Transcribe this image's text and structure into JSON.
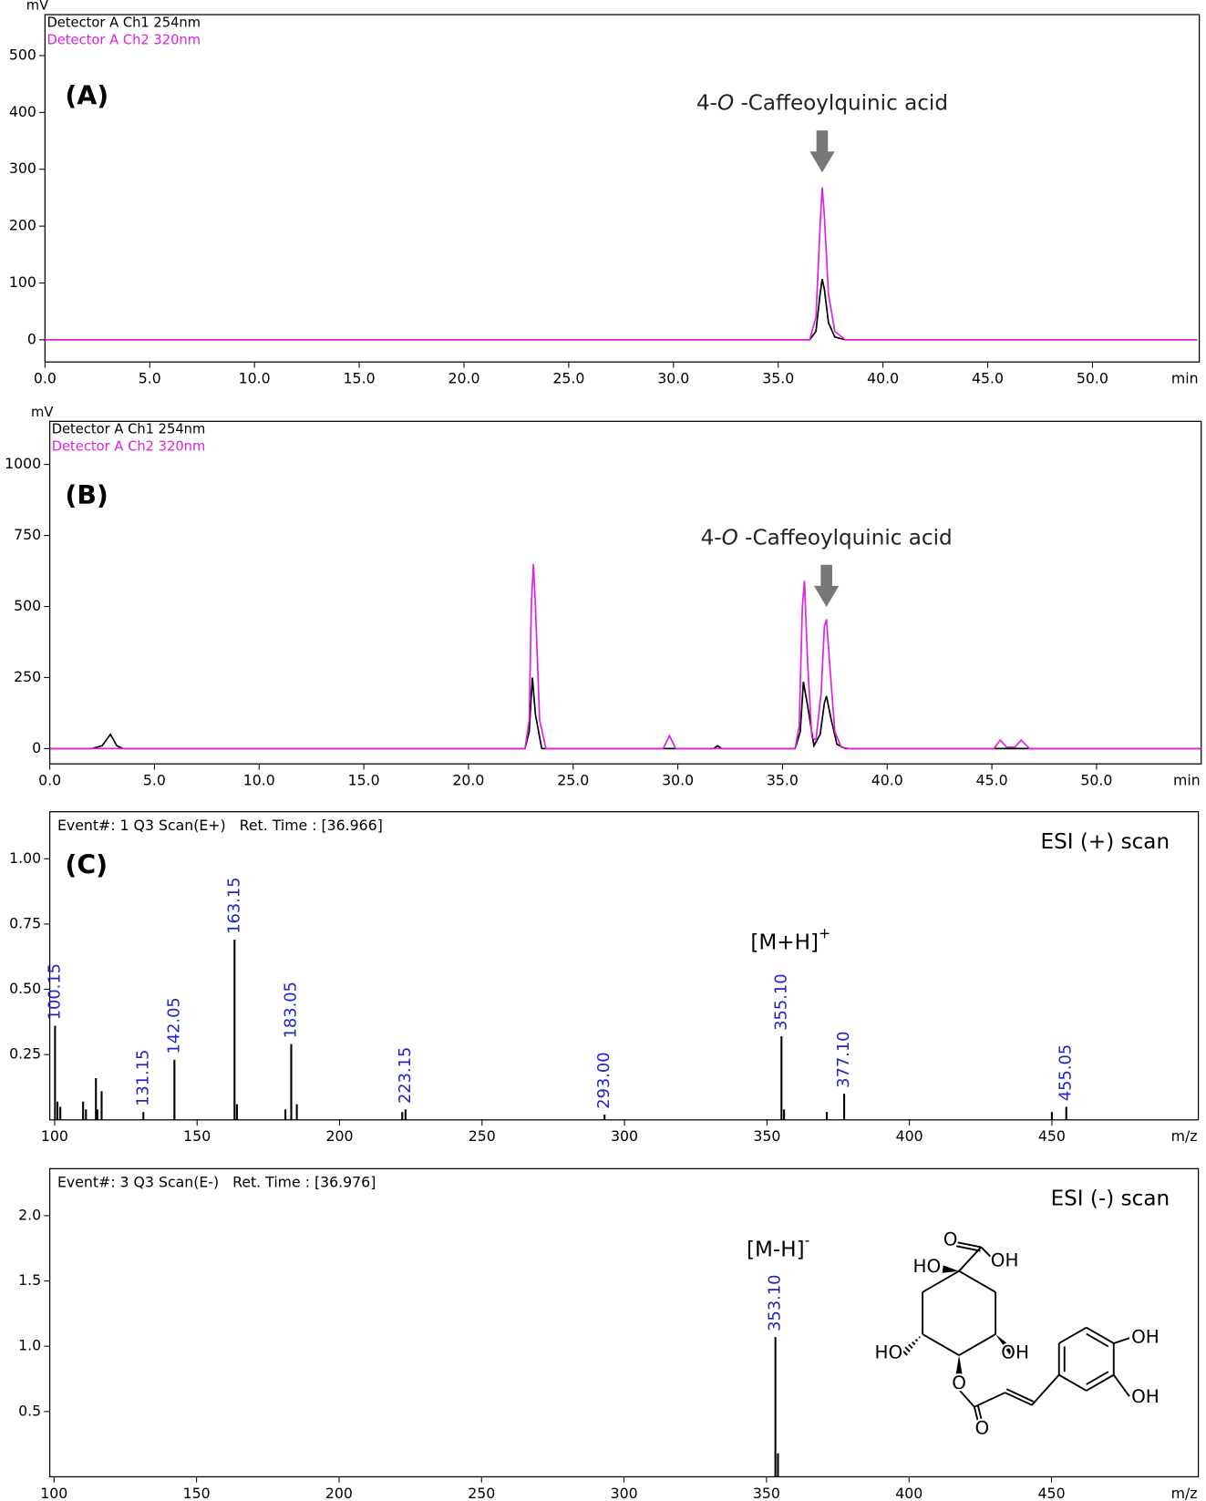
{
  "chart_data": [
    {
      "type": "line",
      "panel_label": "(A)",
      "y_label": "mV",
      "x_label": "min",
      "annotation": {
        "parts": [
          "4-",
          "O",
          " -Caffeoylquinic acid"
        ],
        "x": 37.1
      },
      "xlim": [
        0,
        55.1
      ],
      "ylim": [
        -39,
        572
      ],
      "xticks": [
        {
          "value": 0,
          "label": "0.0"
        },
        {
          "value": 5,
          "label": "5.0"
        },
        {
          "value": 10,
          "label": "10.0"
        },
        {
          "value": 15,
          "label": "15.0"
        },
        {
          "value": 20,
          "label": "20.0"
        },
        {
          "value": 25,
          "label": "25.0"
        },
        {
          "value": 30,
          "label": "30.0"
        },
        {
          "value": 35,
          "label": "35.0"
        },
        {
          "value": 40,
          "label": "40.0"
        },
        {
          "value": 45,
          "label": "45.0"
        },
        {
          "value": 50,
          "label": "50.0"
        }
      ],
      "yticks": [
        0,
        100,
        200,
        300,
        400,
        500
      ],
      "series": [
        {
          "name": "Detector A Ch1 254nm",
          "color": "#000000",
          "x": [
            0,
            36.5,
            36.8,
            37.0,
            37.1,
            37.2,
            37.4,
            37.7,
            38.2,
            55
          ],
          "values": [
            0,
            0,
            15,
            80,
            107,
            90,
            30,
            5,
            0,
            0
          ]
        },
        {
          "name": "Detector A Ch2 320nm",
          "color": "#e020e0",
          "x": [
            0,
            36.5,
            36.8,
            37.0,
            37.1,
            37.2,
            37.4,
            37.7,
            38.2,
            55
          ],
          "values": [
            0,
            0,
            40,
            200,
            268,
            220,
            80,
            15,
            0,
            0
          ]
        }
      ]
    },
    {
      "type": "line",
      "panel_label": "(B)",
      "y_label": "mV",
      "x_label": "min",
      "annotation": {
        "parts": [
          "4-",
          "O",
          " -Caffeoylquinic acid"
        ],
        "x": 37.1
      },
      "xlim": [
        0,
        55
      ],
      "ylim": [
        -54,
        1152
      ],
      "xticks": [
        {
          "value": 0,
          "label": "0.0"
        },
        {
          "value": 5,
          "label": "5.0"
        },
        {
          "value": 10,
          "label": "10.0"
        },
        {
          "value": 15,
          "label": "15.0"
        },
        {
          "value": 20,
          "label": "20.0"
        },
        {
          "value": 25,
          "label": "25.0"
        },
        {
          "value": 30,
          "label": "30.0"
        },
        {
          "value": 35,
          "label": "35.0"
        },
        {
          "value": 40,
          "label": "40.0"
        },
        {
          "value": 45,
          "label": "45.0"
        },
        {
          "value": 50,
          "label": "50.0"
        }
      ],
      "yticks": [
        0,
        250,
        500,
        750,
        1000
      ],
      "series": [
        {
          "name": "Detector A Ch1 254nm",
          "color": "#000000",
          "x": [
            0,
            2.0,
            2.5,
            2.9,
            3.2,
            3.5,
            22.7,
            22.9,
            23.05,
            23.2,
            23.5,
            31.7,
            31.9,
            32.1,
            35.6,
            35.85,
            36.0,
            36.2,
            36.5,
            36.8,
            37.0,
            37.1,
            37.3,
            37.6,
            38.0,
            55
          ],
          "values": [
            0,
            0,
            10,
            50,
            10,
            0,
            0,
            60,
            250,
            120,
            0,
            0,
            10,
            0,
            0,
            60,
            235,
            150,
            10,
            50,
            160,
            185,
            110,
            15,
            0,
            0
          ]
        },
        {
          "name": "Detector A Ch2 320nm",
          "color": "#e020e0",
          "x": [
            0,
            22.7,
            22.9,
            23.0,
            23.1,
            23.2,
            23.4,
            23.7,
            29.3,
            29.6,
            29.9,
            35.6,
            35.8,
            35.95,
            36.05,
            36.2,
            36.4,
            36.6,
            36.85,
            37.0,
            37.1,
            37.25,
            37.5,
            37.8,
            38.2,
            45.1,
            45.4,
            45.7,
            46.1,
            46.4,
            46.8,
            55
          ],
          "values": [
            0,
            0,
            100,
            500,
            650,
            500,
            100,
            0,
            0,
            45,
            0,
            0,
            80,
            500,
            590,
            300,
            40,
            30,
            200,
            430,
            455,
            300,
            60,
            5,
            0,
            0,
            30,
            5,
            5,
            30,
            0,
            0
          ]
        }
      ]
    },
    {
      "type": "spectrum",
      "panel_label": "(C)",
      "x_label": "m/z",
      "event": "Event#: 1 Q3 Scan(E+)   Ret. Time : [36.966]",
      "scan": "ESI (+) scan",
      "ion": [
        "[M+H]",
        "+"
      ],
      "xlim": [
        98.3,
        501.4
      ],
      "ylim": [
        0,
        1.18
      ],
      "xticks": [
        100,
        150,
        200,
        250,
        300,
        350,
        400,
        450
      ],
      "yticks": [
        0.25,
        {
          "value": 0.5,
          "label": "0.50"
        },
        0.75,
        {
          "value": 1,
          "label": "1.00"
        }
      ],
      "color": "#000000",
      "label_color": "#2222cc",
      "x": [
        100.15,
        101,
        102,
        110,
        111,
        114.5,
        115,
        116.5,
        131.15,
        142.05,
        163.15,
        164,
        181,
        183.05,
        185,
        222,
        223.15,
        293.0,
        355.1,
        356,
        371,
        377.1,
        450,
        455.05
      ],
      "x_labels": [
        "100.15",
        null,
        null,
        null,
        null,
        null,
        null,
        null,
        "131.15",
        "142.05",
        "163.15",
        null,
        null,
        "183.05",
        null,
        null,
        "223.15",
        "293.00",
        "355.10",
        null,
        null,
        "377.10",
        null,
        "455.05"
      ],
      "values": [
        0.36,
        0.07,
        0.05,
        0.07,
        0.04,
        0.16,
        0.04,
        0.11,
        0.03,
        0.23,
        0.69,
        0.06,
        0.04,
        0.29,
        0.06,
        0.03,
        0.04,
        0.02,
        0.32,
        0.04,
        0.03,
        0.1,
        0.03,
        0.05
      ]
    },
    {
      "type": "spectrum",
      "x_label": "m/z",
      "event": "Event#: 3 Q3 Scan(E-)   Ret. Time : [36.976]",
      "scan": "ESI (-) scan",
      "ion": [
        "[M-H]",
        "-"
      ],
      "xlim": [
        98.5,
        501.5
      ],
      "ylim": [
        0,
        2.36
      ],
      "xticks": [
        100,
        150,
        200,
        250,
        300,
        350,
        400,
        450
      ],
      "yticks": [
        0.5,
        {
          "value": 1,
          "label": "1.0"
        },
        1.5,
        {
          "value": 2,
          "label": "2.0"
        }
      ],
      "color": "#000000",
      "label_color": "#2222cc",
      "x": [
        353.1,
        354
      ],
      "x_labels": [
        "353.10",
        null
      ],
      "values": [
        1.07,
        0.18
      ],
      "structure_labels": [
        "O",
        "OH",
        "HO",
        "HO",
        "OH",
        "O",
        "O",
        "OH",
        "OH"
      ]
    }
  ]
}
